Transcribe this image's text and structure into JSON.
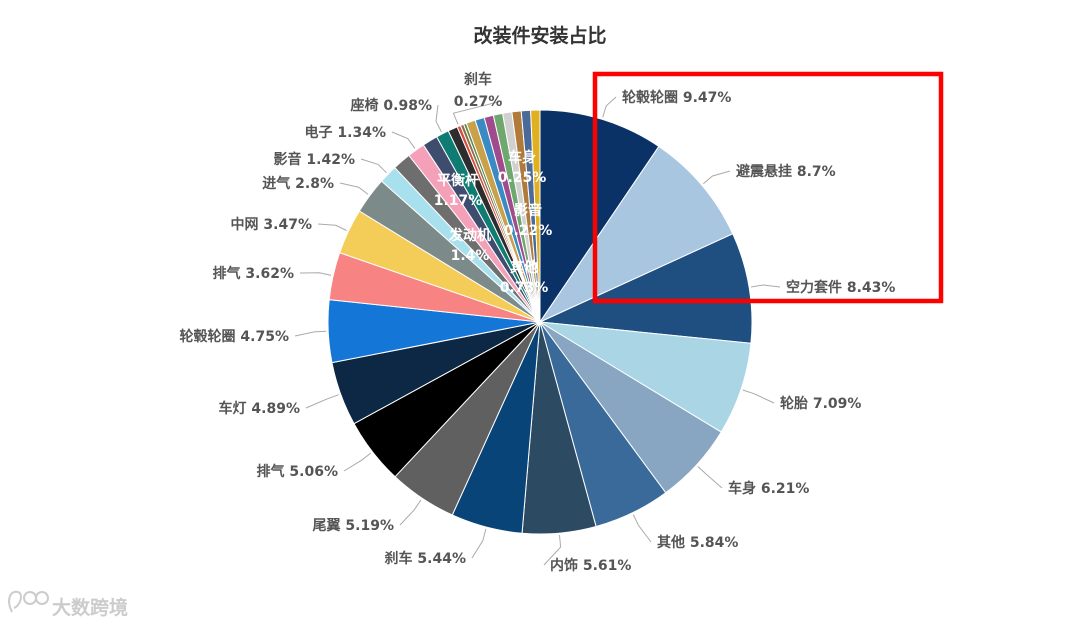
{
  "chart_data": {
    "type": "pie",
    "title": "改装件安装占比",
    "slices": [
      {
        "label": "轮毂轮圈",
        "value": 9.47,
        "display": "9.47%",
        "color": "#0a3266"
      },
      {
        "label": "避震悬挂",
        "value": 8.7,
        "display": "8.7%",
        "color": "#a9c6e0"
      },
      {
        "label": "空力套件",
        "value": 8.43,
        "display": "8.43%",
        "color": "#1f4e80"
      },
      {
        "label": "轮胎",
        "value": 7.09,
        "display": "7.09%",
        "color": "#a9d5e5"
      },
      {
        "label": "车身",
        "value": 6.21,
        "display": "6.21%",
        "color": "#88a6c2"
      },
      {
        "label": "其他",
        "value": 5.84,
        "display": "5.84%",
        "color": "#396a9a"
      },
      {
        "label": "内饰",
        "value": 5.61,
        "display": "5.61%",
        "color": "#2c4a62"
      },
      {
        "label": "刹车",
        "value": 5.44,
        "display": "5.44%",
        "color": "#084478"
      },
      {
        "label": "尾翼",
        "value": 5.19,
        "display": "5.19%",
        "color": "#606060"
      },
      {
        "label": "排气",
        "value": 5.06,
        "display": "5.06%",
        "color": "#000000"
      },
      {
        "label": "车灯",
        "value": 4.89,
        "display": "4.89%",
        "color": "#0d2844"
      },
      {
        "label": "轮毂轮圈",
        "value": 4.75,
        "display": "4.75%",
        "color": "#1476d7"
      },
      {
        "label": "排气",
        "value": 3.62,
        "display": "3.62%",
        "color": "#f88383"
      },
      {
        "label": "中网",
        "value": 3.47,
        "display": "3.47%",
        "color": "#f4cd59"
      },
      {
        "label": "进气",
        "value": 2.8,
        "display": "2.8%",
        "color": "#7d8a8a"
      },
      {
        "label": "影音",
        "value": 1.42,
        "display": "1.42%",
        "color": "#a8e0ee"
      },
      {
        "label": "发动机",
        "value": 1.4,
        "display": "1.4%",
        "color": "#6e6e6e"
      },
      {
        "label": "电子",
        "value": 1.34,
        "display": "1.34%",
        "color": "#f5a0b9"
      },
      {
        "label": "平衡杆",
        "value": 1.17,
        "display": "1.17%",
        "color": "#3e4c6e"
      },
      {
        "label": "座椅",
        "value": 0.98,
        "display": "0.98%",
        "color": "#0e7c72"
      },
      {
        "label": "其他",
        "value": 0.73,
        "display": "0.73%",
        "color": "#2d2d2d"
      },
      {
        "label": "刹车",
        "value": 0.27,
        "display": "0.27%",
        "color": "#d64e3e"
      },
      {
        "label": "车身",
        "value": 0.25,
        "display": "0.25%",
        "color": "#8a6e4e"
      },
      {
        "label": "影音",
        "value": 0.22,
        "display": "0.22%",
        "color": "#5e8c4e"
      }
    ],
    "extra_slice_colors": [
      "#c9a14a",
      "#3a8ac4",
      "#a04c8c",
      "#6ea86e",
      "#d0d0d0",
      "#b07a3a",
      "#4a6a9a",
      "#e0b020"
    ]
  },
  "watermark": {
    "text": "大数跨境"
  }
}
